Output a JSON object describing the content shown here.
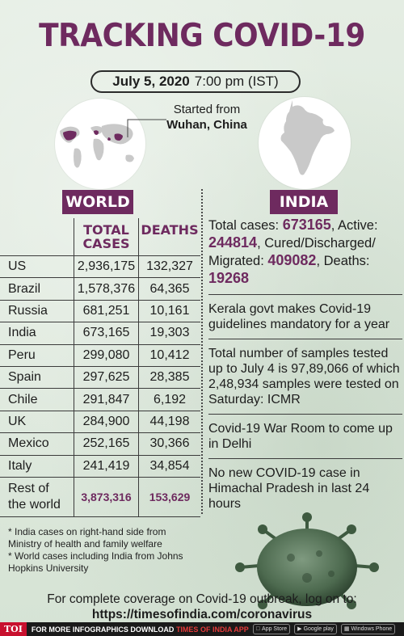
{
  "title": "TRACKING COVID-19",
  "date": {
    "day": "July 5, 2020",
    "time": "7:00 pm (IST)"
  },
  "origin": {
    "prefix": "Started from",
    "city": "Wuhan, China"
  },
  "world": {
    "label": "WORLD",
    "columns": {
      "cases_line1": "TOTAL",
      "cases_line2": "CASES",
      "deaths": "DEATHS"
    },
    "rows": [
      {
        "country": "US",
        "cases": "2,936,175",
        "deaths": "132,327"
      },
      {
        "country": "Brazil",
        "cases": "1,578,376",
        "deaths": "64,365"
      },
      {
        "country": "Russia",
        "cases": "681,251",
        "deaths": "10,161"
      },
      {
        "country": "India",
        "cases": "673,165",
        "deaths": "19,303"
      },
      {
        "country": "Peru",
        "cases": "299,080",
        "deaths": "10,412"
      },
      {
        "country": "Spain",
        "cases": "297,625",
        "deaths": "28,385"
      },
      {
        "country": "Chile",
        "cases": "291,847",
        "deaths": "6,192"
      },
      {
        "country": "UK",
        "cases": "284,900",
        "deaths": "44,198"
      },
      {
        "country": "Mexico",
        "cases": "252,165",
        "deaths": "30,366"
      },
      {
        "country": "Italy",
        "cases": "241,419",
        "deaths": "34,854"
      }
    ],
    "rest": {
      "label_line1": "Rest of",
      "label_line2": "the world",
      "cases": "3,873,316",
      "deaths": "153,629"
    }
  },
  "india": {
    "label": "INDIA",
    "summary": {
      "total_label": "Total cases: ",
      "total": "673165",
      "active_label": ", Active: ",
      "active": "244814",
      "cured_label": ", Cured/Discharged/ Migrated: ",
      "cured": "409082",
      "deaths_label": ", Deaths: ",
      "deaths": "19268"
    },
    "news": [
      "Kerala govt makes Covid-19 guidelines mandatory for a year",
      "Total number of samples tested up to July 4 is 97,89,066 of which 2,48,934 samples were tested on Saturday: ICMR",
      "Covid-19 War Room to come up in Delhi",
      "No new COVID-19 case in Himachal Pradesh in last 24 hours"
    ]
  },
  "footnotes": [
    "* India cases on right-hand side from Ministry of health and family welfare",
    "* World cases including India from Johns Hopkins University"
  ],
  "coverage": {
    "text": "For complete coverage on Covid-19 outbreak, log on to:",
    "url": "https://timesofindia.com/coronavirus"
  },
  "bottom_bar": {
    "logo": "TOI",
    "text": "FOR MORE  INFOGRAPHICS DOWNLOAD",
    "app": "TIMES OF INDIA  APP",
    "stores": [
      "App Store",
      "Google play",
      "Windows Phone"
    ]
  },
  "colors": {
    "accent": "#6e2a5f",
    "background": "#dfe9df",
    "map_highlight": "#6e2a5f"
  }
}
